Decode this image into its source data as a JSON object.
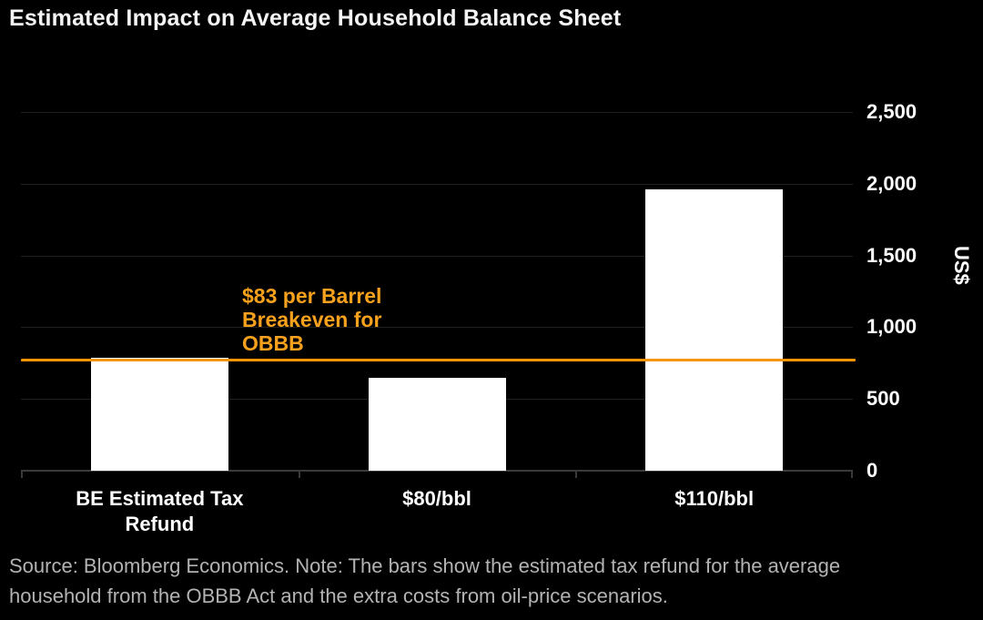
{
  "title": "Estimated Impact on Average Household Balance Sheet",
  "chart_data": {
    "type": "bar",
    "categories": [
      "BE Estimated Tax Refund",
      "$80/bbl",
      "$110/bbl"
    ],
    "values": [
      790,
      650,
      1960
    ],
    "title": "Estimated Impact on Average Household Balance Sheet",
    "xlabel": "",
    "ylabel": "US$",
    "ylim": [
      0,
      2500
    ],
    "ytick_values": [
      0,
      500,
      1000,
      1500,
      2000,
      2500
    ],
    "ytick_labels": [
      "0",
      "500",
      "1,000",
      "1,500",
      "2,000",
      "2,500"
    ],
    "grid": true,
    "legend": "none",
    "bar_color": "#ffffff",
    "background_color": "#000000",
    "reference_line": {
      "value": 775,
      "label": "$83 per Barrel Breakeven for OBBB",
      "color": "#f79500"
    }
  },
  "annotation": {
    "lines": [
      "$83 per Barrel",
      "Breakeven for",
      "OBBB"
    ],
    "color": "#f7a11c"
  },
  "source_note": {
    "lines": [
      "Source: Bloomberg Economics. Note: The bars show the estimated tax refund for the average",
      "household from the OBBB Act and the extra costs from oil-price scenarios."
    ]
  }
}
